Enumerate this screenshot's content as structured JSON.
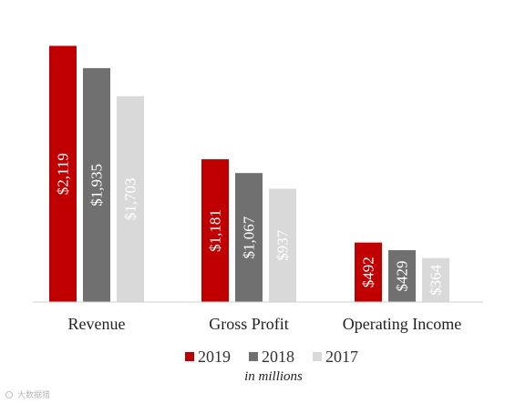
{
  "chart_data": {
    "type": "bar",
    "categories": [
      "Revenue",
      "Gross Profit",
      "Operating Income"
    ],
    "series": [
      {
        "name": "2019",
        "values": [
          2119,
          1181,
          492
        ],
        "labels": [
          "$2,119",
          "$1,181",
          "$492"
        ],
        "color": "#c00000"
      },
      {
        "name": "2018",
        "values": [
          1935,
          1067,
          429
        ],
        "labels": [
          "$1,935",
          "$1,067",
          "$429"
        ],
        "color": "#707070"
      },
      {
        "name": "2017",
        "values": [
          1703,
          937,
          364
        ],
        "labels": [
          "$1,703",
          "$937",
          "$364"
        ],
        "color": "#d9d9d9"
      }
    ],
    "ylim": [
      0,
      2220
    ],
    "grid": false,
    "legend_position": "bottom",
    "units_note": "in millions"
  },
  "watermark": {
    "text": "大数据猎"
  },
  "colors": {
    "axis": "#d0d0d0",
    "label_text": "#ffffff"
  }
}
